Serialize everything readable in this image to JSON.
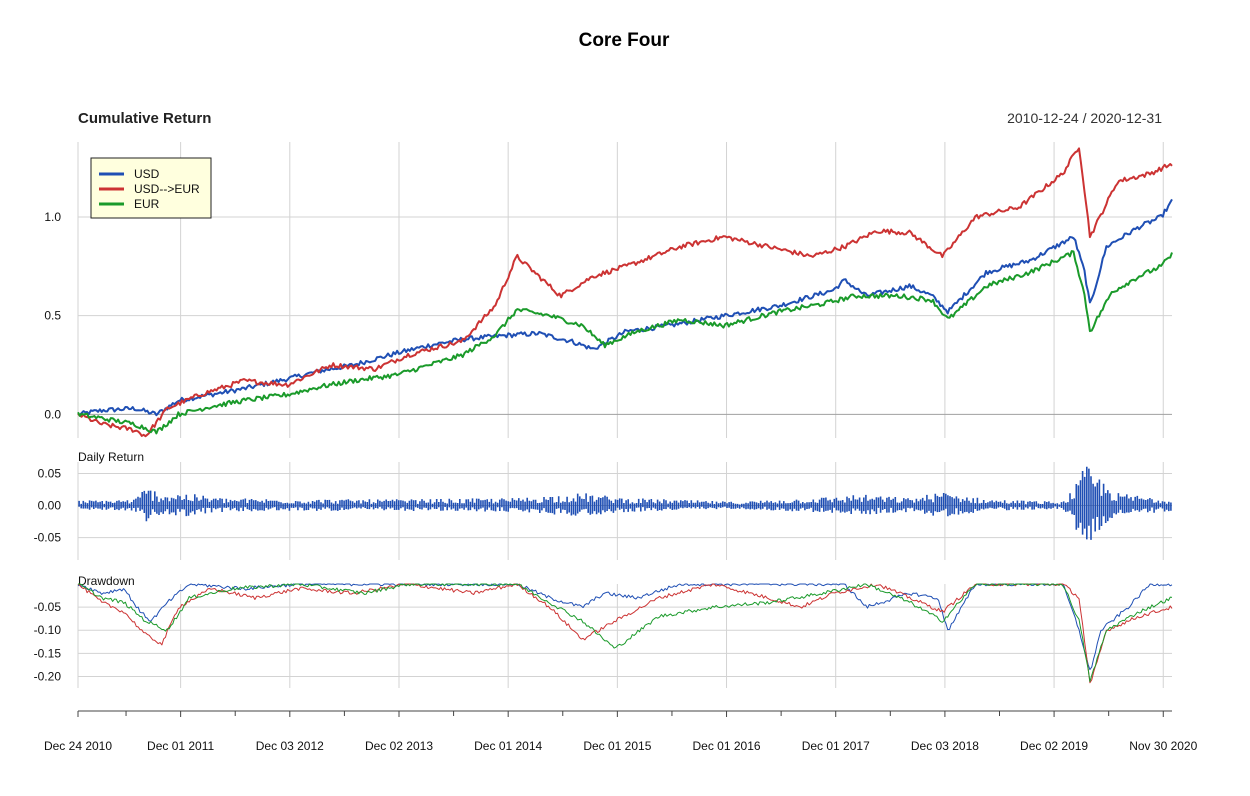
{
  "chart_data": {
    "type": "line",
    "title": "Core Four",
    "date_range": "2010-12-24 / 2020-12-31",
    "x_tick_labels": [
      "Dec 24 2010",
      "Dec 01 2011",
      "Dec 03 2012",
      "Dec 02 2013",
      "Dec 01 2014",
      "Dec 01 2015",
      "Dec 01 2016",
      "Dec 01 2017",
      "Dec 03 2018",
      "Dec 02 2019",
      "Nov 30 2020"
    ],
    "x_ticks_years": [
      2010.98,
      2011.92,
      2012.92,
      2013.92,
      2014.92,
      2015.92,
      2016.92,
      2017.92,
      2018.92,
      2019.92,
      2020.92
    ],
    "xlim": [
      2010.98,
      2021.0
    ],
    "colors": {
      "USD": "#1f4fb4",
      "USD-->EUR": "#cc3333",
      "EUR": "#1a9a2a"
    },
    "legend": [
      "USD",
      "USD-->EUR",
      "EUR"
    ],
    "panels": [
      {
        "id": "cumulative",
        "title": "Cumulative Return",
        "ylabel": "",
        "ylim": [
          -0.12,
          1.38
        ],
        "yticks": [
          0.0,
          0.5,
          1.0
        ],
        "ytick_labels": [
          "0.0",
          "0.5",
          "1.0"
        ],
        "series": [
          {
            "name": "USD",
            "x": [
              2010.98,
              2011.2,
              2011.5,
              2011.7,
              2011.9,
              2012.2,
              2012.5,
              2012.9,
              2013.2,
              2013.5,
              2013.9,
              2014.2,
              2014.5,
              2014.9,
              2015.2,
              2015.5,
              2015.7,
              2016.0,
              2016.4,
              2016.9,
              2017.4,
              2017.9,
              2018.0,
              2018.2,
              2018.6,
              2018.8,
              2018.95,
              2019.3,
              2019.7,
              2020.1,
              2020.2,
              2020.25,
              2020.4,
              2020.7,
              2020.9,
              2021.0
            ],
            "values": [
              0.0,
              0.02,
              0.03,
              0.0,
              0.07,
              0.1,
              0.13,
              0.18,
              0.22,
              0.25,
              0.31,
              0.35,
              0.38,
              0.4,
              0.41,
              0.37,
              0.33,
              0.42,
              0.45,
              0.5,
              0.55,
              0.63,
              0.68,
              0.6,
              0.65,
              0.6,
              0.52,
              0.72,
              0.78,
              0.9,
              0.72,
              0.55,
              0.85,
              0.95,
              1.0,
              1.08
            ]
          },
          {
            "name": "USD-->EUR",
            "x": [
              2010.98,
              2011.2,
              2011.5,
              2011.6,
              2011.8,
              2012.1,
              2012.5,
              2012.9,
              2013.3,
              2013.7,
              2014.0,
              2014.2,
              2014.5,
              2014.8,
              2015.0,
              2015.1,
              2015.4,
              2015.7,
              2016.0,
              2016.5,
              2016.9,
              2017.3,
              2017.7,
              2018.0,
              2018.3,
              2018.6,
              2018.9,
              2019.2,
              2019.6,
              2020.0,
              2020.15,
              2020.25,
              2020.5,
              2020.8,
              2021.0
            ],
            "values": [
              0.0,
              -0.05,
              -0.08,
              -0.11,
              0.03,
              0.1,
              0.17,
              0.15,
              0.25,
              0.23,
              0.3,
              0.33,
              0.37,
              0.55,
              0.8,
              0.75,
              0.6,
              0.7,
              0.75,
              0.85,
              0.9,
              0.85,
              0.8,
              0.85,
              0.93,
              0.92,
              0.8,
              1.0,
              1.05,
              1.22,
              1.36,
              0.9,
              1.18,
              1.22,
              1.27
            ]
          },
          {
            "name": "EUR",
            "x": [
              2010.98,
              2011.2,
              2011.5,
              2011.7,
              2011.9,
              2012.2,
              2012.5,
              2012.9,
              2013.2,
              2013.5,
              2013.9,
              2014.2,
              2014.5,
              2014.8,
              2015.0,
              2015.3,
              2015.6,
              2015.8,
              2016.1,
              2016.5,
              2016.9,
              2017.4,
              2017.8,
              2018.1,
              2018.5,
              2018.8,
              2018.95,
              2019.3,
              2019.7,
              2020.1,
              2020.2,
              2020.25,
              2020.45,
              2020.7,
              2020.9,
              2021.0
            ],
            "values": [
              0.0,
              -0.02,
              -0.05,
              -0.09,
              0.0,
              0.04,
              0.07,
              0.1,
              0.14,
              0.17,
              0.2,
              0.25,
              0.3,
              0.4,
              0.53,
              0.5,
              0.45,
              0.35,
              0.42,
              0.48,
              0.45,
              0.52,
              0.56,
              0.6,
              0.6,
              0.58,
              0.48,
              0.65,
              0.72,
              0.82,
              0.6,
              0.42,
              0.62,
              0.7,
              0.75,
              0.81
            ]
          }
        ]
      },
      {
        "id": "daily",
        "title": "Daily Return",
        "ylim": [
          -0.085,
          0.068
        ],
        "yticks": [
          -0.05,
          0.0,
          0.05
        ],
        "ytick_labels": [
          "-0.05",
          "0.00",
          "0.05"
        ],
        "series": [
          {
            "name": "USD",
            "envelope_x": [
              2010.98,
              2011.5,
              2011.6,
              2011.75,
              2011.95,
              2012.3,
              2013.0,
              2014.0,
              2015.0,
              2015.6,
              2015.7,
              2016.0,
              2017.0,
              2018.0,
              2018.1,
              2018.6,
              2018.9,
              2019.3,
              2020.0,
              2020.15,
              2020.2,
              2020.3,
              2020.5,
              2021.0
            ],
            "envelope_values": [
              0.008,
              0.01,
              0.03,
              0.02,
              0.02,
              0.012,
              0.01,
              0.01,
              0.012,
              0.02,
              0.018,
              0.012,
              0.006,
              0.015,
              0.018,
              0.012,
              0.022,
              0.01,
              0.006,
              0.04,
              0.065,
              0.05,
              0.02,
              0.01
            ]
          }
        ]
      },
      {
        "id": "drawdown",
        "title": "Drawdown",
        "ylim": [
          -0.225,
          0.0
        ],
        "yticks": [
          -0.2,
          -0.15,
          -0.1,
          -0.05
        ],
        "ytick_labels": [
          "-0.20",
          "-0.15",
          "-0.10",
          "-0.05"
        ],
        "series": [
          {
            "name": "USD",
            "x": [
              2010.98,
              2011.2,
              2011.4,
              2011.55,
              2011.65,
              2011.8,
              2012.0,
              2012.5,
              2013.0,
              2014.0,
              2015.0,
              2015.3,
              2015.6,
              2015.8,
              2016.1,
              2016.5,
              2017.0,
              2018.0,
              2018.2,
              2018.6,
              2018.85,
              2018.95,
              2019.2,
              2020.0,
              2020.15,
              2020.25,
              2020.35,
              2020.6,
              2020.8,
              2021.0
            ],
            "values": [
              0.0,
              -0.02,
              -0.01,
              -0.06,
              -0.08,
              -0.04,
              0.0,
              -0.01,
              0.0,
              0.0,
              0.0,
              -0.03,
              -0.05,
              -0.02,
              -0.03,
              0.0,
              0.0,
              0.0,
              -0.05,
              -0.02,
              -0.03,
              -0.1,
              0.0,
              0.0,
              -0.1,
              -0.19,
              -0.1,
              -0.05,
              0.0,
              0.0
            ]
          },
          {
            "name": "USD-->EUR",
            "x": [
              2010.98,
              2011.2,
              2011.4,
              2011.6,
              2011.75,
              2011.9,
              2012.2,
              2012.6,
              2013.0,
              2013.5,
              2014.0,
              2014.6,
              2015.0,
              2015.3,
              2015.6,
              2015.9,
              2016.3,
              2016.8,
              2017.3,
              2017.6,
              2017.9,
              2018.3,
              2018.7,
              2018.9,
              2019.2,
              2020.0,
              2020.15,
              2020.25,
              2020.4,
              2020.7,
              2021.0
            ],
            "values": [
              0.0,
              -0.04,
              -0.06,
              -0.11,
              -0.13,
              -0.05,
              -0.01,
              -0.03,
              -0.01,
              -0.02,
              0.0,
              -0.02,
              0.0,
              -0.05,
              -0.12,
              -0.08,
              -0.03,
              0.0,
              -0.03,
              -0.05,
              -0.02,
              0.0,
              -0.04,
              -0.06,
              0.0,
              0.0,
              -0.03,
              -0.22,
              -0.1,
              -0.07,
              -0.05
            ]
          },
          {
            "name": "EUR",
            "x": [
              2010.98,
              2011.2,
              2011.4,
              2011.6,
              2011.8,
              2012.0,
              2012.4,
              2013.0,
              2013.6,
              2014.0,
              2014.8,
              2015.0,
              2015.3,
              2015.6,
              2015.9,
              2016.3,
              2016.8,
              2017.3,
              2017.8,
              2018.2,
              2018.6,
              2018.9,
              2019.2,
              2020.0,
              2020.15,
              2020.25,
              2020.4,
              2020.7,
              2021.0
            ],
            "values": [
              0.0,
              -0.03,
              -0.04,
              -0.08,
              -0.1,
              -0.03,
              -0.01,
              0.0,
              -0.02,
              0.0,
              0.0,
              0.0,
              -0.04,
              -0.08,
              -0.14,
              -0.07,
              -0.05,
              -0.04,
              -0.02,
              0.0,
              -0.04,
              -0.08,
              0.0,
              0.0,
              -0.08,
              -0.21,
              -0.1,
              -0.06,
              -0.03
            ]
          }
        ]
      }
    ]
  }
}
